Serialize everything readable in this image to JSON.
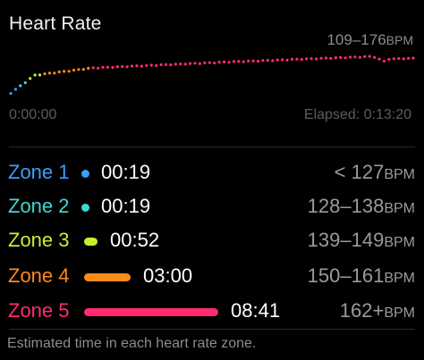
{
  "title": "Heart Rate",
  "range": {
    "value": "109–176",
    "unit": "BPM"
  },
  "chart": {
    "start_label": "0:00:00",
    "end_label": "Elapsed: 0:13:20"
  },
  "zones": [
    {
      "label": "Zone 1",
      "time": "00:19",
      "range": "< 127",
      "unit": "BPM",
      "color": "#3aa0ff",
      "time_seconds": 19
    },
    {
      "label": "Zone 2",
      "time": "00:19",
      "range": "128–138",
      "unit": "BPM",
      "color": "#3fd9d0",
      "time_seconds": 19
    },
    {
      "label": "Zone 3",
      "time": "00:52",
      "range": "139–149",
      "unit": "BPM",
      "color": "#c5f02e",
      "time_seconds": 52
    },
    {
      "label": "Zone 4",
      "time": "03:00",
      "range": "150–161",
      "unit": "BPM",
      "color": "#ff8a1c",
      "time_seconds": 180
    },
    {
      "label": "Zone 5",
      "time": "08:41",
      "range": "162+",
      "unit": "BPM",
      "color": "#ff2d6e",
      "time_seconds": 521
    }
  ],
  "footer": "Estimated time in each heart rate zone."
}
